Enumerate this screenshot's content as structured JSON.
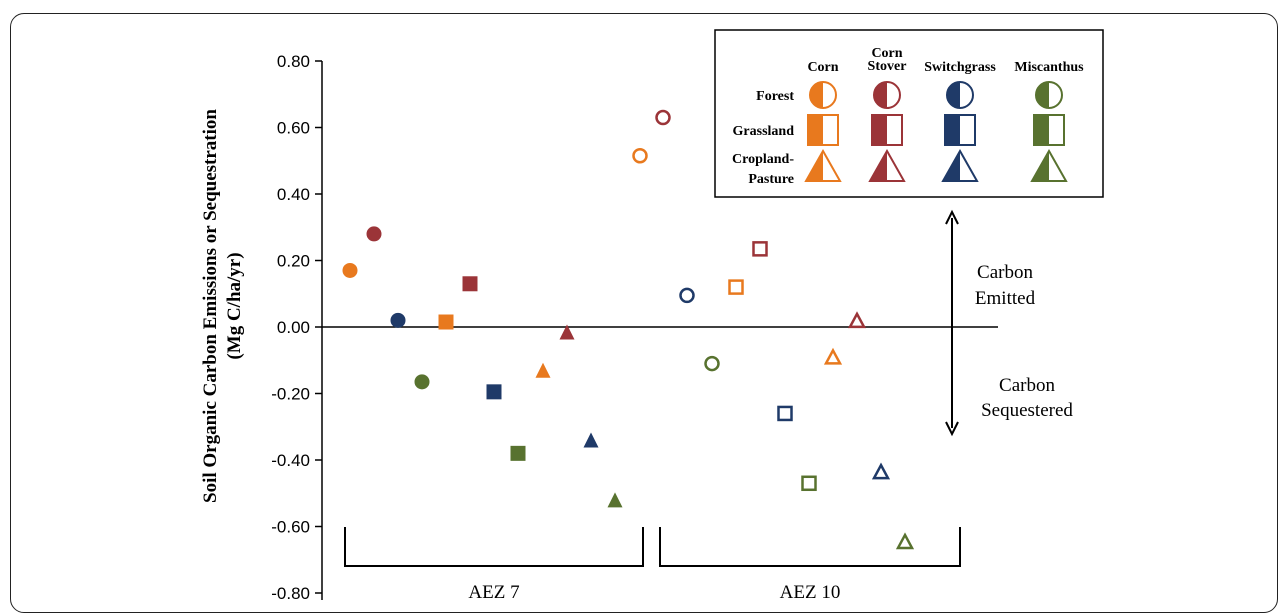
{
  "chart_data": {
    "type": "scatter",
    "title": "",
    "ylabel_line1": "Soil Organic Carbon Emissions or Sequestration",
    "ylabel_line2": "(Mg C/ha/yr)",
    "ylim": [
      -0.8,
      0.8
    ],
    "yticks": [
      "0.80",
      "0.60",
      "0.40",
      "0.20",
      "0.00",
      "-0.20",
      "-0.40",
      "-0.60",
      "-0.80"
    ],
    "ytick_values": [
      0.8,
      0.6,
      0.4,
      0.2,
      0.0,
      -0.2,
      -0.4,
      -0.6,
      -0.8
    ],
    "colors": {
      "Corn": "#E8791E",
      "Corn Stover": "#9B3438",
      "Switchgrass": "#1F3A68",
      "Miscanthus": "#58722F"
    },
    "groups": [
      {
        "name": "AEZ 7",
        "fill": "filled",
        "points": [
          {
            "crop": "Corn",
            "land": "Forest",
            "value": 0.17
          },
          {
            "crop": "Corn Stover",
            "land": "Forest",
            "value": 0.28
          },
          {
            "crop": "Switchgrass",
            "land": "Forest",
            "value": 0.02
          },
          {
            "crop": "Miscanthus",
            "land": "Forest",
            "value": -0.165
          },
          {
            "crop": "Corn",
            "land": "Grassland",
            "value": 0.015
          },
          {
            "crop": "Corn Stover",
            "land": "Grassland",
            "value": 0.13
          },
          {
            "crop": "Switchgrass",
            "land": "Grassland",
            "value": -0.195
          },
          {
            "crop": "Miscanthus",
            "land": "Grassland",
            "value": -0.38
          },
          {
            "crop": "Corn",
            "land": "Cropland-Pasture",
            "value": -0.13
          },
          {
            "crop": "Corn Stover",
            "land": "Cropland-Pasture",
            "value": -0.015
          },
          {
            "crop": "Switchgrass",
            "land": "Cropland-Pasture",
            "value": -0.34
          },
          {
            "crop": "Miscanthus",
            "land": "Cropland-Pasture",
            "value": -0.52
          }
        ]
      },
      {
        "name": "AEZ 10",
        "fill": "open",
        "points": [
          {
            "crop": "Corn",
            "land": "Forest",
            "value": 0.515
          },
          {
            "crop": "Corn Stover",
            "land": "Forest",
            "value": 0.63
          },
          {
            "crop": "Switchgrass",
            "land": "Forest",
            "value": 0.095
          },
          {
            "crop": "Miscanthus",
            "land": "Forest",
            "value": -0.11
          },
          {
            "crop": "Corn",
            "land": "Grassland",
            "value": 0.12
          },
          {
            "crop": "Corn Stover",
            "land": "Grassland",
            "value": 0.235
          },
          {
            "crop": "Switchgrass",
            "land": "Grassland",
            "value": -0.26
          },
          {
            "crop": "Miscanthus",
            "land": "Grassland",
            "value": -0.47
          },
          {
            "crop": "Corn",
            "land": "Cropland-Pasture",
            "value": -0.09
          },
          {
            "crop": "Corn Stover",
            "land": "Cropland-Pasture",
            "value": 0.02
          },
          {
            "crop": "Switchgrass",
            "land": "Cropland-Pasture",
            "value": -0.435
          },
          {
            "crop": "Miscanthus",
            "land": "Cropland-Pasture",
            "value": -0.645
          }
        ]
      }
    ],
    "legend": {
      "crops": [
        "Corn",
        "Corn Stover",
        "Switchgrass",
        "Miscanthus"
      ],
      "crop_labels": [
        [
          "Corn"
        ],
        [
          "Corn",
          "Stover"
        ],
        [
          "Switchgrass"
        ],
        [
          "Miscanthus"
        ]
      ],
      "lands": [
        "Forest",
        "Grassland",
        "Cropland-Pasture"
      ],
      "land_labels": [
        [
          "Forest"
        ],
        [
          "Grassland"
        ],
        [
          "Cropland-",
          "Pasture"
        ]
      ],
      "placement": "top-right"
    },
    "annotations": {
      "emitted": [
        "Carbon",
        "Emitted"
      ],
      "sequestered": [
        "Carbon",
        "Sequestered"
      ]
    },
    "grid": false
  }
}
